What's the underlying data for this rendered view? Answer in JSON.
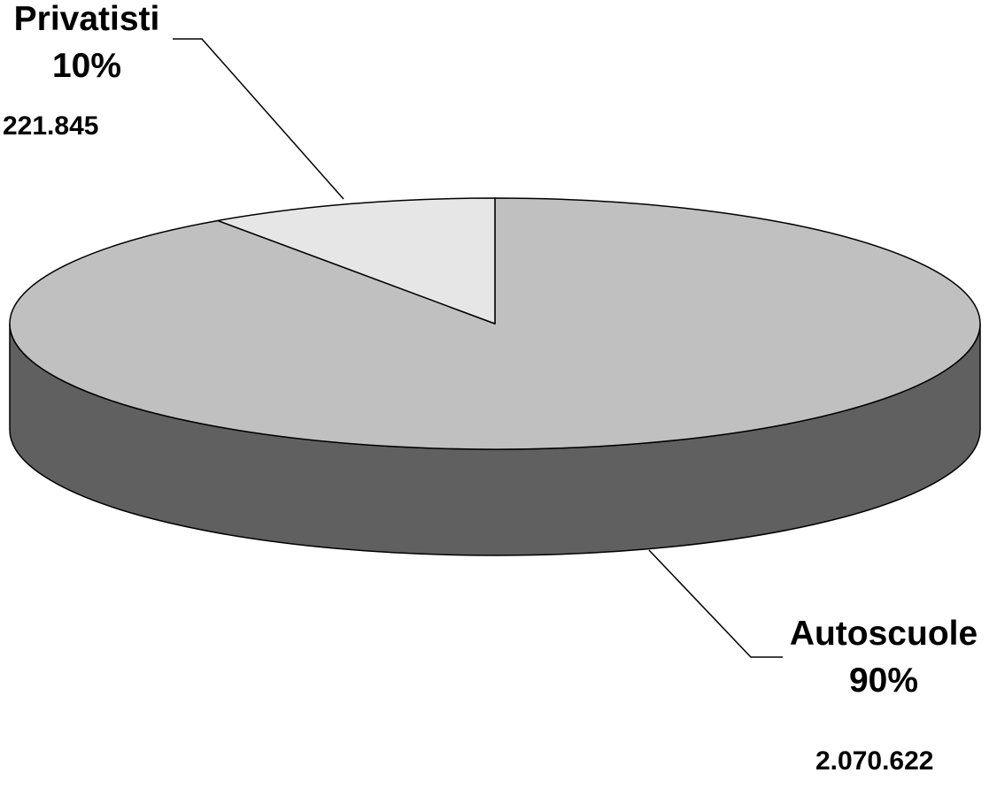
{
  "chart_data": {
    "type": "pie",
    "style": "3d",
    "title": "",
    "slices": [
      {
        "name": "Autoscuole",
        "percent_label": "90%",
        "value_label": "2.070.622",
        "value": 2070622,
        "color": "#C0C0C0",
        "side_color": "#606060"
      },
      {
        "name": "Privatisti",
        "percent_label": "10%",
        "value_label": "221.845",
        "value": 221845,
        "color": "#E6E6E6",
        "side_color": "#8C8C8C"
      }
    ],
    "legend": "none"
  }
}
